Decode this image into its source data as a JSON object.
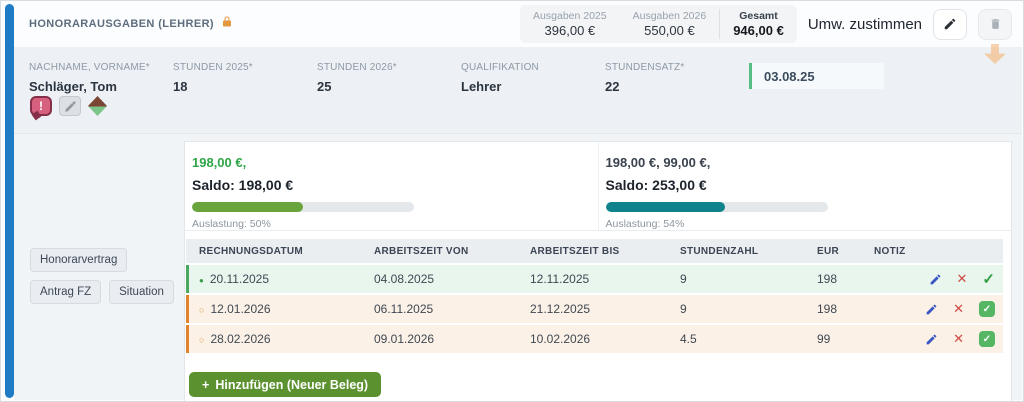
{
  "window": {
    "accent_color": "#1f7bc3"
  },
  "header": {
    "title": "HONORARAUSGABEN (LEHRER)",
    "stats": [
      {
        "label": "Ausgaben 2025",
        "value": "396,00 €"
      },
      {
        "label": "Ausgaben 2026",
        "value": "550,00 €"
      },
      {
        "label": "Gesamt",
        "value": "946,00 €"
      }
    ],
    "action_label": "Umw. zustimmen"
  },
  "person": {
    "fields": [
      {
        "label": "NACHNAME, VORNAME*",
        "value": "Schläger, Tom"
      },
      {
        "label": "STUNDEN 2025*",
        "value": "18"
      },
      {
        "label": "STUNDEN 2026*",
        "value": "25"
      },
      {
        "label": "QUALIFIKATION",
        "value": "Lehrer"
      },
      {
        "label": "STUNDENSATZ*",
        "value": "22"
      }
    ],
    "date_badge": "03.08.25"
  },
  "sidebar": {
    "buttons": [
      {
        "label": "Honorarvertrag"
      },
      {
        "label": "Antrag FZ"
      },
      {
        "label": "Situation"
      }
    ]
  },
  "summaries": [
    {
      "amounts": "198,00 €,",
      "saldo": "Saldo: 198,00 €",
      "utilization": "Auslastung: 50%",
      "percent": 50,
      "bar_color": "#69a53c",
      "amounts_color": "#2ea546"
    },
    {
      "amounts": "198,00 €, 99,00 €,",
      "saldo": "Saldo: 253,00 €",
      "utilization": "Auslastung: 54%",
      "percent": 54,
      "bar_color": "#0f828b",
      "amounts_color": "#39424d"
    }
  ],
  "table": {
    "columns": [
      "RECHNUNGSDATUM",
      "ARBEITSZEIT VON",
      "ARBEITSZEIT BIS",
      "STUNDENZAHL",
      "EUR",
      "NOTIZ"
    ],
    "rows": [
      {
        "bullet": "●",
        "date": "20.11.2025",
        "from": "04.08.2025",
        "to": "12.11.2025",
        "hours": "9",
        "eur": "198",
        "note": ""
      },
      {
        "bullet": "○",
        "date": "12.01.2026",
        "from": "06.11.2025",
        "to": "21.12.2025",
        "hours": "9",
        "eur": "198",
        "note": ""
      },
      {
        "bullet": "○",
        "date": "28.02.2026",
        "from": "09.01.2026",
        "to": "10.02.2026",
        "hours": "4.5",
        "eur": "99",
        "note": ""
      }
    ]
  },
  "add_button": {
    "icon": "+",
    "label": "Hinzufügen (Neuer Beleg)"
  },
  "icons": {
    "delete": "✕",
    "approve": "✓",
    "exclamation": "!"
  }
}
